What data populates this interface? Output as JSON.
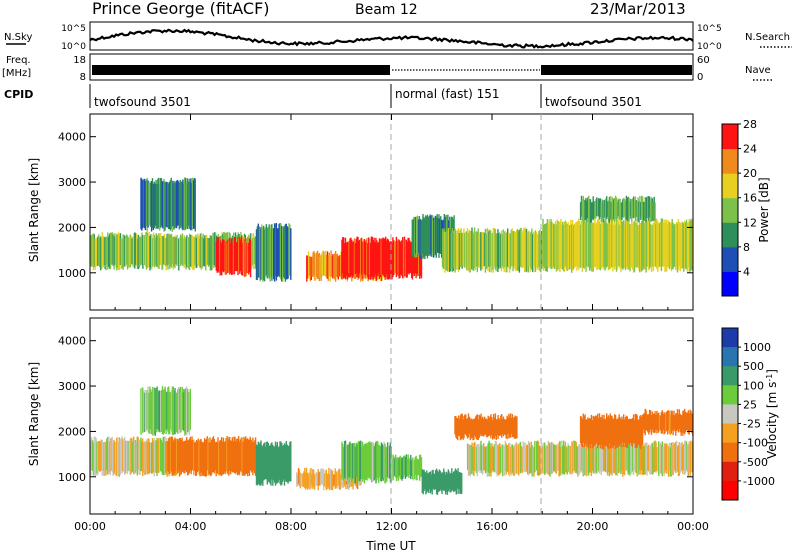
{
  "header": {
    "station": "Prince George (fitACF)",
    "beam": "Beam 12",
    "date": "23/Mar/2013"
  },
  "left_labels": {
    "nsky": "N.Sky",
    "freq_line1": "Freq.",
    "freq_line2": "[MHz]",
    "cpid": "CPID"
  },
  "right_labels": {
    "nsearch": "N.Search",
    "nave": "Nave"
  },
  "noise_axes": {
    "left_top": "10^5",
    "left_bottom": "10^0",
    "right_top": "10^5",
    "right_bottom": "10^0"
  },
  "freq_axes": {
    "left_top": "18",
    "left_bottom": "8",
    "right_top": "60",
    "right_bottom": "0"
  },
  "cpid_segments": [
    {
      "label": "twofsound 3501",
      "start_hour": 0,
      "end_hour": 12
    },
    {
      "label": "normal (fast) 151",
      "start_hour": 12,
      "end_hour": 18
    },
    {
      "label": "twofsound 3501",
      "start_hour": 18,
      "end_hour": 24
    }
  ],
  "chart_data": [
    {
      "type": "heatmap",
      "name": "power",
      "ylabel": "Slant Range [km]",
      "yticks": [
        "1000",
        "2000",
        "3000",
        "4000"
      ],
      "ylim": [
        180,
        4500
      ],
      "xlim": [
        0,
        24
      ],
      "colorbar_label": "Power [dB]",
      "colorbar_ticks": [
        "4",
        "8",
        "12",
        "16",
        "20",
        "24",
        "28"
      ],
      "colorbar_colors": [
        "#0000ff",
        "#1e4fb4",
        "#2f8f5a",
        "#7cc24a",
        "#e8d020",
        "#f08a1c",
        "#ff1414"
      ],
      "regions_hours_km_value": [
        {
          "x0": 0.0,
          "x1": 6.8,
          "y0": 1050,
          "y1": 1900,
          "v": 14
        },
        {
          "x0": 2.0,
          "x1": 4.2,
          "y0": 1900,
          "y1": 3100,
          "v": 9
        },
        {
          "x0": 5.0,
          "x1": 6.4,
          "y0": 900,
          "y1": 1800,
          "v": 26
        },
        {
          "x0": 6.6,
          "x1": 8.0,
          "y0": 800,
          "y1": 2100,
          "v": 10
        },
        {
          "x0": 8.6,
          "x1": 11.9,
          "y0": 800,
          "y1": 1500,
          "v": 22
        },
        {
          "x0": 10.0,
          "x1": 13.2,
          "y0": 850,
          "y1": 1800,
          "v": 27
        },
        {
          "x0": 12.8,
          "x1": 14.5,
          "y0": 1300,
          "y1": 2300,
          "v": 9
        },
        {
          "x0": 14.0,
          "x1": 18.2,
          "y0": 1000,
          "y1": 2000,
          "v": 15
        },
        {
          "x0": 18.0,
          "x1": 24.0,
          "y0": 1000,
          "y1": 2200,
          "v": 16
        },
        {
          "x0": 19.5,
          "x1": 22.5,
          "y0": 2100,
          "y1": 2700,
          "v": 12
        }
      ]
    },
    {
      "type": "heatmap",
      "name": "velocity",
      "ylabel": "Slant Range [km]",
      "yticks": [
        "1000",
        "2000",
        "3000",
        "4000"
      ],
      "ylim": [
        180,
        4500
      ],
      "xlim": [
        0,
        24
      ],
      "xticks": [
        "00:00",
        "04:00",
        "08:00",
        "12:00",
        "16:00",
        "20:00",
        "00:00"
      ],
      "xlabel": "Time UT",
      "colorbar_label": "Velocity [m s^-1]",
      "colorbar_ticks": [
        "1000",
        "500",
        "100",
        "25",
        "-25",
        "-100",
        "-500",
        "-1000"
      ],
      "colorbar_colors": [
        "#1e3ca8",
        "#2a74b0",
        "#3a9a68",
        "#6ccc3c",
        "#c8c8c0",
        "#f4a020",
        "#f07010",
        "#e02010",
        "#ff0000"
      ],
      "regions_hours_km_value": [
        {
          "x0": 0.0,
          "x1": 3.6,
          "y0": 1000,
          "y1": 1900,
          "v": 0
        },
        {
          "x0": 2.0,
          "x1": 4.0,
          "y0": 1900,
          "y1": 3000,
          "v": 60
        },
        {
          "x0": 3.0,
          "x1": 6.6,
          "y0": 1000,
          "y1": 1900,
          "v": -150
        },
        {
          "x0": 6.6,
          "x1": 8.0,
          "y0": 800,
          "y1": 1800,
          "v": 200
        },
        {
          "x0": 8.2,
          "x1": 10.8,
          "y0": 700,
          "y1": 1200,
          "v": -50
        },
        {
          "x0": 10.0,
          "x1": 12.0,
          "y0": 850,
          "y1": 1800,
          "v": 80
        },
        {
          "x0": 12.0,
          "x1": 13.2,
          "y0": 900,
          "y1": 1500,
          "v": 80
        },
        {
          "x0": 13.2,
          "x1": 14.8,
          "y0": 600,
          "y1": 1200,
          "v": 200
        },
        {
          "x0": 14.5,
          "x1": 17.0,
          "y0": 1800,
          "y1": 2400,
          "v": -200
        },
        {
          "x0": 15.0,
          "x1": 24.0,
          "y0": 1000,
          "y1": 1800,
          "v": 0
        },
        {
          "x0": 19.5,
          "x1": 22.0,
          "y0": 1600,
          "y1": 2400,
          "v": -200
        },
        {
          "x0": 22.0,
          "x1": 24.0,
          "y0": 1900,
          "y1": 2500,
          "v": -150
        }
      ]
    }
  ]
}
